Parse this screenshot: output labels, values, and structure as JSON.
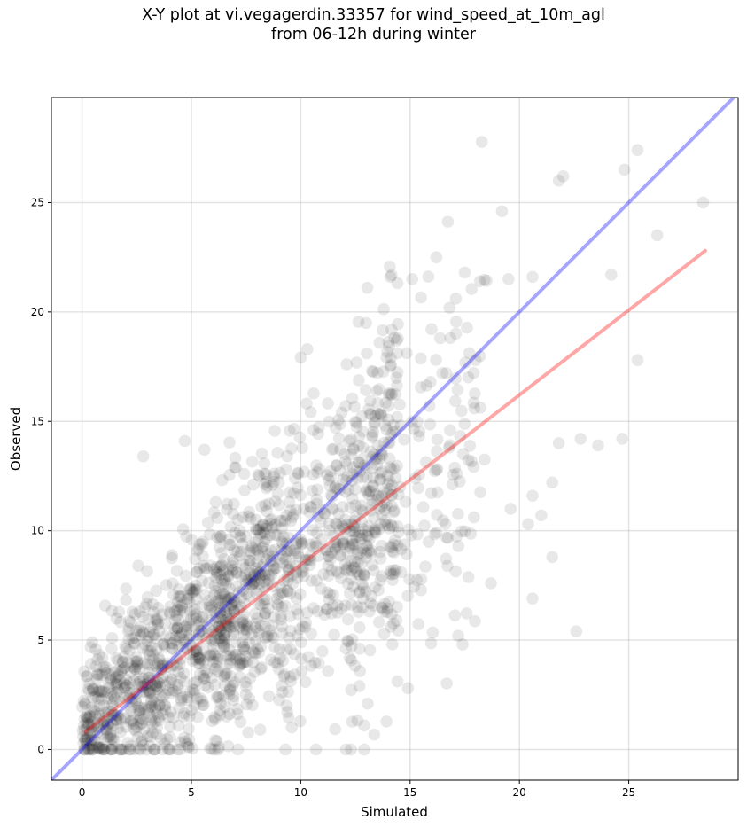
{
  "chart_data": {
    "type": "scatter",
    "title_line1": "X-Y plot at vi.vegagerdin.33357 for wind_speed_at_10m_agl",
    "title_line2": "from 06-12h during winter",
    "xlabel": "Simulated",
    "ylabel": "Observed",
    "xlim": [
      -1.4,
      30.0
    ],
    "ylim": [
      -1.4,
      29.8
    ],
    "xticks": [
      0,
      5,
      10,
      15,
      20,
      25
    ],
    "yticks": [
      0,
      5,
      10,
      15,
      20,
      25
    ],
    "grid": true,
    "point_color": "#000000",
    "point_alpha": 0.09,
    "identity_line": {
      "color": "#0000ff",
      "alpha": 0.35,
      "x": [
        -1.4,
        30.0
      ],
      "y": [
        -1.4,
        30.0
      ]
    },
    "fit_line": {
      "color": "#ff0000",
      "alpha": 0.35,
      "x": [
        0.15,
        28.5
      ],
      "y": [
        0.8,
        22.8
      ]
    },
    "highlighted_points": [
      {
        "x": 25.4,
        "y": 27.4
      },
      {
        "x": 24.8,
        "y": 26.5
      },
      {
        "x": 22.0,
        "y": 26.2
      },
      {
        "x": 21.8,
        "y": 26.0
      },
      {
        "x": 28.4,
        "y": 25.0
      },
      {
        "x": 19.2,
        "y": 24.6
      },
      {
        "x": 26.3,
        "y": 23.5
      },
      {
        "x": 16.2,
        "y": 22.5
      },
      {
        "x": 14.1,
        "y": 21.6
      },
      {
        "x": 15.1,
        "y": 21.5
      },
      {
        "x": 17.5,
        "y": 21.8
      },
      {
        "x": 18.2,
        "y": 21.4
      },
      {
        "x": 19.5,
        "y": 21.5
      },
      {
        "x": 20.6,
        "y": 21.6
      },
      {
        "x": 24.2,
        "y": 21.7
      },
      {
        "x": 10.3,
        "y": 18.3
      },
      {
        "x": 25.4,
        "y": 17.8
      },
      {
        "x": 21.8,
        "y": 14.0
      },
      {
        "x": 22.8,
        "y": 14.2
      },
      {
        "x": 23.6,
        "y": 13.9
      },
      {
        "x": 24.7,
        "y": 14.2
      },
      {
        "x": 2.8,
        "y": 13.4
      },
      {
        "x": 4.7,
        "y": 14.1
      },
      {
        "x": 5.6,
        "y": 13.7
      },
      {
        "x": 21.5,
        "y": 12.2
      },
      {
        "x": 20.6,
        "y": 11.6
      },
      {
        "x": 19.6,
        "y": 11.0
      },
      {
        "x": 21.0,
        "y": 10.7
      },
      {
        "x": 20.4,
        "y": 10.3
      },
      {
        "x": 21.5,
        "y": 8.8
      },
      {
        "x": 20.6,
        "y": 6.9
      },
      {
        "x": 22.6,
        "y": 5.4
      },
      {
        "x": 18.7,
        "y": 7.6
      },
      {
        "x": 17.2,
        "y": 5.2
      },
      {
        "x": 17.4,
        "y": 4.8
      },
      {
        "x": 14.9,
        "y": 2.8
      },
      {
        "x": 12.9,
        "y": 1.1
      },
      {
        "x": 9.3,
        "y": 0.0
      },
      {
        "x": 10.7,
        "y": 0.0
      },
      {
        "x": 12.3,
        "y": 0.0
      },
      {
        "x": 12.9,
        "y": 0.0
      },
      {
        "x": 3.3,
        "y": 0.0
      },
      {
        "x": 1.0,
        "y": 0.0
      },
      {
        "x": 0.2,
        "y": 0.3
      }
    ]
  }
}
